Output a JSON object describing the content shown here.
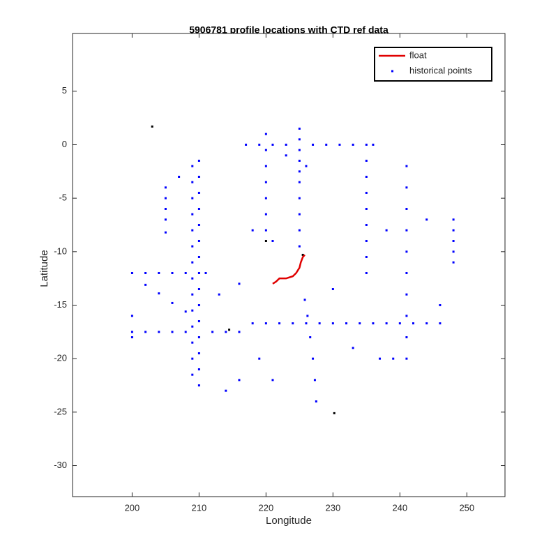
{
  "chart_data": {
    "type": "scatter",
    "title": "5906781 profile locations with CTD ref data",
    "xlabel": "Longitude",
    "ylabel": "Latitude",
    "xlim": [
      191.1,
      255.7
    ],
    "ylim": [
      -32.9,
      10.4
    ],
    "xticks": [
      200,
      210,
      220,
      230,
      240,
      250
    ],
    "yticks": [
      5,
      0,
      -5,
      -10,
      -15,
      -20,
      -25,
      -30
    ],
    "legend": "upper right",
    "series": [
      {
        "name": "historical points",
        "color": "#0000ff",
        "mode": "markers",
        "x": [
          210,
          210,
          210,
          210,
          210,
          210,
          210,
          210,
          210,
          210,
          210,
          210,
          210,
          210,
          210,
          209,
          209,
          209,
          209,
          209,
          209,
          209,
          209,
          209,
          209,
          209,
          209,
          209,
          209,
          200,
          202,
          204,
          206,
          208,
          212,
          214,
          216,
          218,
          220,
          222,
          224,
          226,
          228,
          230,
          232,
          234,
          236,
          238,
          240,
          242,
          244,
          246,
          200,
          202,
          204,
          206,
          208,
          211,
          202,
          204,
          206,
          208,
          225,
          225,
          225,
          225,
          225,
          225,
          225,
          225,
          225,
          225,
          217,
          219,
          221,
          223,
          227,
          229,
          231,
          233,
          236,
          220,
          220,
          220,
          220,
          220,
          220,
          220,
          235,
          235,
          235,
          235,
          235,
          235,
          235,
          235,
          235,
          241,
          241,
          241,
          241,
          241,
          241,
          241,
          241,
          241,
          241,
          225.8,
          226.2,
          226.6,
          227,
          227.3,
          227.5,
          205,
          205,
          205,
          205,
          205,
          248,
          248,
          248,
          248,
          248,
          207,
          213,
          216,
          218,
          221,
          219,
          214,
          216,
          233,
          230,
          237,
          239,
          246,
          244,
          238,
          226,
          221,
          200,
          200,
          223
        ],
        "y": [
          -1.5,
          -3,
          -4.5,
          -6,
          -7.5,
          -9,
          -10.5,
          -12,
          -13.5,
          -15,
          -16.5,
          -18,
          -19.5,
          -21,
          -22.5,
          -2,
          -3.5,
          -5,
          -6.5,
          -8,
          -9.5,
          -11,
          -12.5,
          -14,
          -15.5,
          -17,
          -18.5,
          -20,
          -21.5,
          -17.5,
          -17.5,
          -17.5,
          -17.5,
          -17.5,
          -17.5,
          -17.5,
          -17.5,
          -16.7,
          -16.7,
          -16.7,
          -16.7,
          -16.7,
          -16.7,
          -16.7,
          -16.7,
          -16.7,
          -16.7,
          -16.7,
          -16.7,
          -16.7,
          -16.7,
          -16.7,
          -12,
          -12,
          -12,
          -12,
          -12,
          -12,
          -13.1,
          -13.9,
          -14.8,
          -15.6,
          1.5,
          0.5,
          -0.5,
          -1.5,
          -2.5,
          -3.5,
          -5,
          -6.5,
          -8,
          -9.5,
          0,
          0,
          0,
          0,
          0,
          0,
          0,
          0,
          0,
          1,
          -0.5,
          -2,
          -3.5,
          -5,
          -6.5,
          -8,
          0,
          -1.5,
          -3,
          -4.5,
          -6,
          -7.5,
          -9,
          -10.5,
          -12,
          -2,
          -4,
          -6,
          -8,
          -10,
          -12,
          -14,
          -16,
          -18,
          -20,
          -14.5,
          -16,
          -18,
          -20,
          -22,
          -24,
          -4,
          -5,
          -6,
          -7,
          -8.2,
          -7,
          -8,
          -9,
          -10,
          -11,
          -3,
          -14,
          -13,
          -8,
          -22,
          -20,
          -23,
          -22,
          -19,
          -13.5,
          -20,
          -20,
          -15,
          -7,
          -8,
          -2,
          -9,
          -16,
          -18,
          -1
        ]
      },
      {
        "color": "#000000",
        "mode": "markers",
        "x": [
          203,
          220,
          214.5,
          230.2,
          225.5
        ],
        "y": [
          1.7,
          -9,
          -17.3,
          -25.1,
          -10.3
        ]
      },
      {
        "name": "float",
        "color": "#e00000",
        "mode": "line",
        "x": [
          221,
          221.5,
          222,
          223,
          224,
          224.5,
          225,
          225.2,
          225.5,
          225.8
        ],
        "y": [
          -13,
          -12.8,
          -12.5,
          -12.5,
          -12.3,
          -12,
          -11.5,
          -11,
          -10.5,
          -10.3
        ]
      }
    ]
  }
}
